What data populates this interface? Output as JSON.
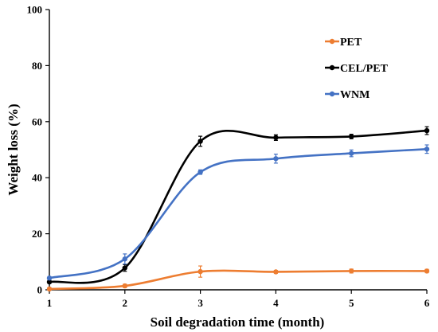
{
  "chart_data": {
    "type": "line",
    "title": "",
    "xlabel": "Soil degradation time (month)",
    "ylabel": "Weight loss (%)",
    "x": [
      1,
      2,
      3,
      4,
      5,
      6
    ],
    "xlim": [
      1,
      6
    ],
    "ylim": [
      0,
      100
    ],
    "xticks": [
      "1",
      "2",
      "3",
      "4",
      "5",
      "6"
    ],
    "yticks": [
      "0",
      "20",
      "40",
      "60",
      "80",
      "100"
    ],
    "grid": false,
    "legend_position": "top-right",
    "series": [
      {
        "name": "PET",
        "color": "#ed7d31",
        "values": [
          0.3,
          1.4,
          6.5,
          6.4,
          6.7,
          6.7
        ],
        "errors": [
          0.2,
          0.6,
          2.0,
          0.5,
          0.7,
          0.6
        ]
      },
      {
        "name": "CEL/PET",
        "color": "#000000",
        "values": [
          2.8,
          7.8,
          53.0,
          54.3,
          54.7,
          56.8
        ],
        "errors": [
          0.5,
          1.2,
          1.8,
          1.0,
          0.8,
          1.4
        ]
      },
      {
        "name": "WNM",
        "color": "#4472c4",
        "values": [
          4.2,
          11.0,
          42.0,
          46.8,
          48.7,
          50.2
        ],
        "errors": [
          0.5,
          1.8,
          0.8,
          1.6,
          1.2,
          1.5
        ]
      }
    ]
  }
}
